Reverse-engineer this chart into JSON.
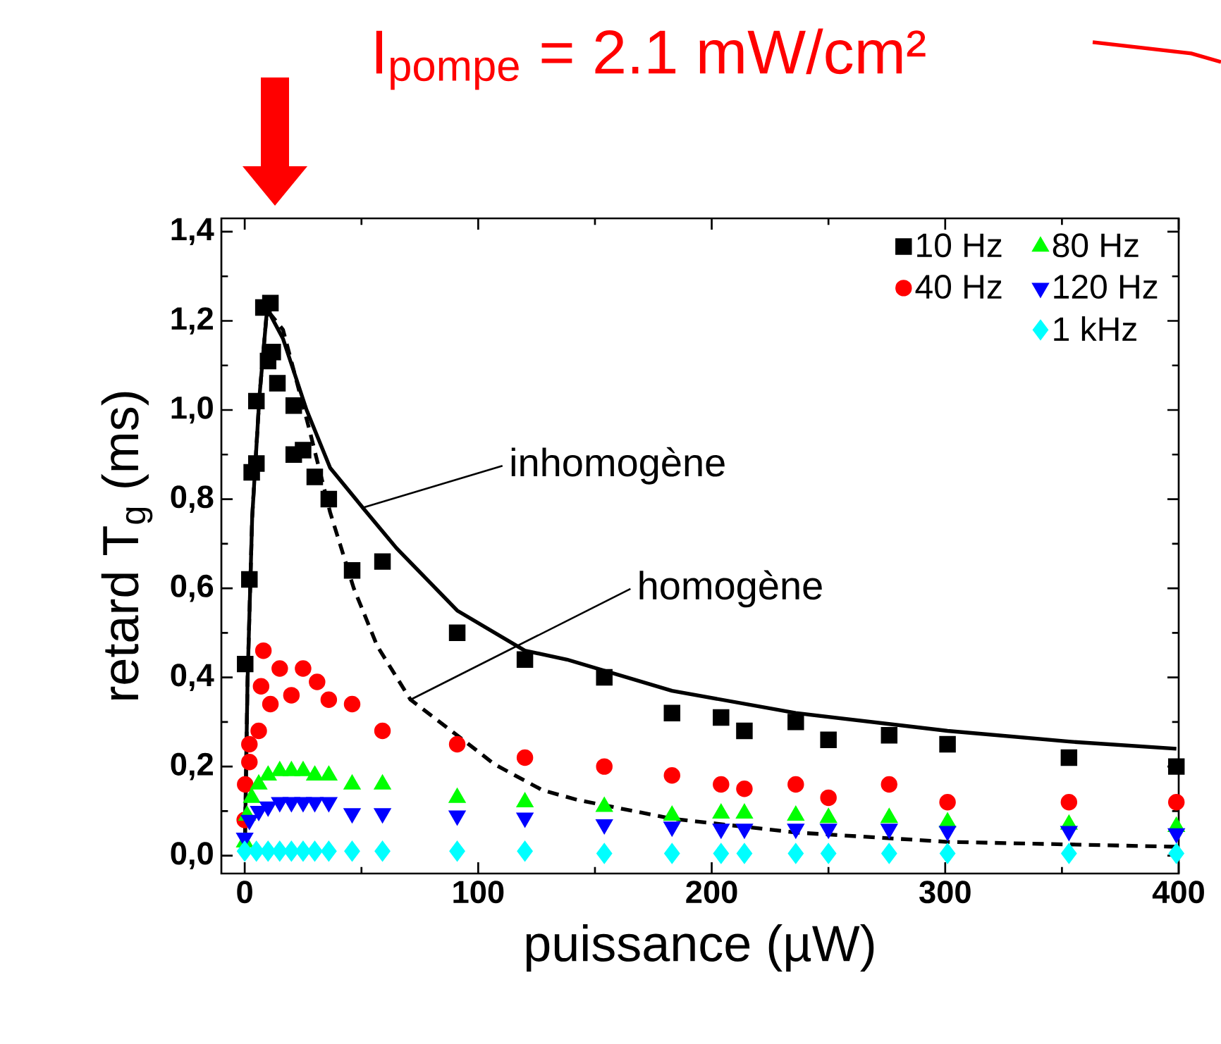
{
  "chart_data": {
    "type": "scatter",
    "title": "I$_{pompe}$ = 2.1 mW/cm²",
    "xlabel": "puissance (µW)",
    "ylabel": "retard T$_{g}$ (ms)",
    "xlim": [
      -10,
      400
    ],
    "ylim": [
      -0.04,
      1.43
    ],
    "xticks": [
      0,
      100,
      200,
      300,
      400
    ],
    "yticks": [
      {
        "value": 0,
        "label": "0,0"
      },
      {
        "value": 0.2,
        "label": "0,2"
      },
      {
        "value": 0.4,
        "label": "0,4"
      },
      {
        "value": 0.6,
        "label": "0,6"
      },
      {
        "value": 0.8,
        "label": "0,8"
      },
      {
        "value": 1.0,
        "label": "1,0"
      },
      {
        "value": 1.2,
        "label": "1,2"
      },
      {
        "value": 1.4,
        "label": "1,4"
      }
    ],
    "legend": "top right",
    "grid": false,
    "annotations": [
      {
        "text": "inhomogène",
        "x": 50,
        "y": 0.78
      },
      {
        "text": "homogène",
        "x": 71,
        "y": 0.35
      }
    ],
    "series": [
      {
        "name": "10 Hz",
        "color": "#000000",
        "marker": "square",
        "x": [
          0.2,
          2,
          3,
          5,
          5,
          8,
          11,
          10,
          12,
          14,
          21,
          21,
          25,
          30,
          36,
          46,
          59,
          91,
          120,
          154,
          183,
          204,
          214,
          236,
          250,
          276,
          301,
          353,
          399
        ],
        "values": [
          0.43,
          0.62,
          0.86,
          0.88,
          1.02,
          1.23,
          1.24,
          1.11,
          1.13,
          1.06,
          1.01,
          0.9,
          0.91,
          0.85,
          0.8,
          0.64,
          0.66,
          0.5,
          0.44,
          0.4,
          0.32,
          0.31,
          0.28,
          0.3,
          0.26,
          0.27,
          0.25,
          0.22,
          0.2
        ]
      },
      {
        "name": "40 Hz",
        "color": "#ff0000",
        "marker": "circle",
        "x": [
          0,
          0.2,
          2,
          2,
          6,
          7,
          8,
          11,
          15,
          20,
          25,
          31,
          36,
          46,
          59,
          91,
          120,
          154,
          183,
          204,
          214,
          236,
          250,
          276,
          301,
          353,
          399
        ],
        "values": [
          0.08,
          0.16,
          0.21,
          0.25,
          0.28,
          0.38,
          0.46,
          0.34,
          0.42,
          0.36,
          0.42,
          0.39,
          0.35,
          0.34,
          0.28,
          0.25,
          0.22,
          0.2,
          0.18,
          0.16,
          0.15,
          0.16,
          0.13,
          0.16,
          0.12,
          0.12,
          0.12
        ]
      },
      {
        "name": "80 Hz",
        "color": "#00ff00",
        "marker": "triangle",
        "x": [
          0,
          1,
          3,
          6,
          10,
          15,
          20,
          25,
          30,
          36,
          46,
          59,
          91,
          120,
          154,
          183,
          204,
          214,
          236,
          250,
          276,
          301,
          353,
          399
        ],
        "values": [
          0.03,
          0.09,
          0.13,
          0.16,
          0.18,
          0.19,
          0.19,
          0.19,
          0.18,
          0.18,
          0.16,
          0.16,
          0.13,
          0.12,
          0.11,
          0.09,
          0.095,
          0.095,
          0.09,
          0.085,
          0.085,
          0.075,
          0.07,
          0.065
        ]
      },
      {
        "name": "120 Hz",
        "color": "#0000ff",
        "marker": "triangle-down",
        "x": [
          0,
          2,
          6,
          10,
          15,
          20,
          25,
          30,
          36,
          46,
          59,
          91,
          120,
          154,
          183,
          204,
          214,
          236,
          250,
          276,
          301,
          353,
          399
        ],
        "values": [
          0.04,
          0.08,
          0.1,
          0.11,
          0.12,
          0.12,
          0.12,
          0.12,
          0.12,
          0.095,
          0.095,
          0.09,
          0.085,
          0.07,
          0.065,
          0.06,
          0.06,
          0.06,
          0.06,
          0.06,
          0.055,
          0.055,
          0.05
        ]
      },
      {
        "name": "1 kHz",
        "color": "#00ffff",
        "marker": "diamond",
        "x": [
          0,
          5,
          10,
          15,
          20,
          25,
          30,
          36,
          46,
          59,
          91,
          120,
          154,
          183,
          204,
          214,
          236,
          250,
          276,
          301,
          353,
          399
        ],
        "values": [
          0.01,
          0.01,
          0.01,
          0.01,
          0.01,
          0.01,
          0.01,
          0.01,
          0.01,
          0.01,
          0.01,
          0.01,
          0.005,
          0.005,
          0.005,
          0.005,
          0.005,
          0.005,
          0.005,
          0.005,
          0.005,
          0.005
        ]
      },
      {
        "type": "line",
        "color": "#000000",
        "line_style": "solid",
        "marker": "none",
        "x": [
          0,
          1.2,
          3.2,
          6.3,
          9.3,
          10.3,
          16.4,
          26.5,
          36.6,
          50.7,
          65,
          91,
          120,
          138,
          183,
          236,
          301,
          353,
          399
        ],
        "values": [
          0,
          0.39,
          0.76,
          1.03,
          1.21,
          1.22,
          1.16,
          1.0,
          0.87,
          0.78,
          0.69,
          0.55,
          0.46,
          0.44,
          0.37,
          0.32,
          0.28,
          0.256,
          0.24
        ]
      },
      {
        "type": "line",
        "color": "#000000",
        "line_style": "dashed",
        "marker": "none",
        "x": [
          0,
          1.2,
          3.2,
          6.3,
          9.3,
          10.3,
          16.4,
          27.5,
          36.6,
          46.7,
          56.8,
          71,
          91,
          107,
          127.5,
          142.6,
          183,
          236,
          301,
          399
        ],
        "values": [
          0,
          0.39,
          0.76,
          1.03,
          1.21,
          1.22,
          1.18,
          0.96,
          0.77,
          0.6,
          0.47,
          0.35,
          0.27,
          0.205,
          0.147,
          0.125,
          0.083,
          0.052,
          0.031,
          0.02
        ]
      }
    ]
  }
}
